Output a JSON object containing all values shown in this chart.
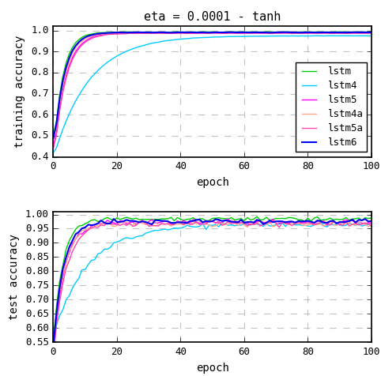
{
  "title": "eta = 0.0001 - tanh",
  "series": [
    {
      "label": "lstm",
      "color": "#00cc00",
      "lw": 1.0
    },
    {
      "label": "lstm4",
      "color": "#00ccff",
      "lw": 1.0
    },
    {
      "label": "lstm5",
      "color": "#ff00ff",
      "lw": 1.0
    },
    {
      "label": "lstm4a",
      "color": "#ffaa88",
      "lw": 1.0
    },
    {
      "label": "lstm5a",
      "color": "#ff44aa",
      "lw": 1.0
    },
    {
      "label": "lstm6",
      "color": "#0000ee",
      "lw": 1.5
    }
  ],
  "train_ylim": [
    0.4,
    1.02
  ],
  "test_ylim": [
    0.55,
    1.01
  ],
  "train_yticks": [
    0.4,
    0.5,
    0.6,
    0.7,
    0.8,
    0.9,
    1.0
  ],
  "test_yticks": [
    0.55,
    0.6,
    0.65,
    0.7,
    0.75,
    0.8,
    0.85,
    0.9,
    0.95,
    1.0
  ],
  "xticks": [
    0,
    20,
    40,
    60,
    80,
    100
  ],
  "xlabel": "epoch",
  "train_ylabel": "training accuracy",
  "test_ylabel": "test accuracy",
  "epochs": 100,
  "grid_color": "#aaaaaa",
  "grid_style": "--",
  "background_color": "#ffffff",
  "legend_fontsize": 9,
  "axis_label_fontsize": 10,
  "tick_fontsize": 9,
  "title_fontsize": 11
}
